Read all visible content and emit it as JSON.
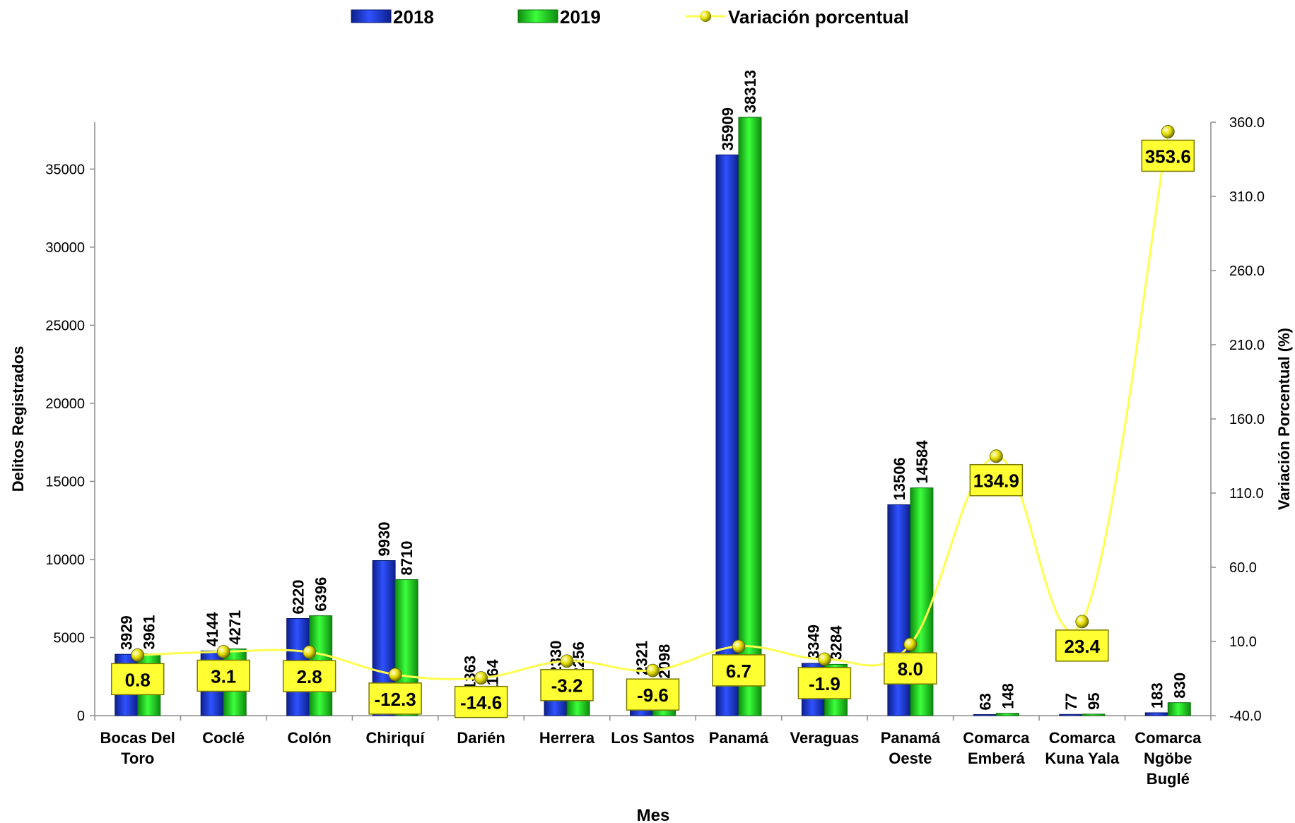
{
  "chart_data": {
    "type": "bar",
    "title": "",
    "xlabel": "Mes",
    "ylabel": "Delitos Registrados",
    "y2label": "Variación Porcentual (%)",
    "ylim": [
      0,
      38000
    ],
    "y_ticks": [
      "0",
      "5000",
      "10000",
      "15000",
      "20000",
      "25000",
      "30000",
      "35000"
    ],
    "y2lim": [
      -40,
      360
    ],
    "y2_ticks": [
      "-40.0",
      "10.0",
      "60.0",
      "110.0",
      "160.0",
      "210.0",
      "260.0",
      "310.0",
      "360.0"
    ],
    "categories": [
      [
        "Bocas Del",
        "Toro"
      ],
      [
        "Coclé"
      ],
      [
        "Colón"
      ],
      [
        "Chiriquí"
      ],
      [
        "Darién"
      ],
      [
        "Herrera"
      ],
      [
        "Los Santos"
      ],
      [
        "Panamá"
      ],
      [
        "Veraguas"
      ],
      [
        "Panamá",
        "Oeste"
      ],
      [
        "Comarca",
        "Emberá"
      ],
      [
        "Comarca",
        "Kuna Yala"
      ],
      [
        "Comarca",
        "Ngöbe",
        "Buglé"
      ]
    ],
    "series": [
      {
        "name": "2018",
        "color": "#1f3fd0",
        "values": [
          3929,
          4144,
          6220,
          9930,
          1363,
          2330,
          2321,
          35909,
          3349,
          13506,
          63,
          77,
          183
        ]
      },
      {
        "name": "2019",
        "color": "#1fdc1f",
        "values": [
          3961,
          4271,
          6396,
          8710,
          1164,
          2256,
          2098,
          38313,
          3284,
          14584,
          148,
          95,
          830
        ]
      }
    ],
    "line_series": {
      "name": "Variación porcentual",
      "color": "#ffff4d",
      "axis": "y2",
      "values": [
        "0.8",
        "3.1",
        "2.8",
        "-12.3",
        "-14.6",
        "-3.2",
        "-9.6",
        "6.7",
        "-1.9",
        "8.0",
        "134.9",
        "23.4",
        "353.6"
      ]
    },
    "legend": {
      "position": "top",
      "items": [
        "2018",
        "2019",
        "Variación porcentual"
      ]
    },
    "grid": false
  }
}
